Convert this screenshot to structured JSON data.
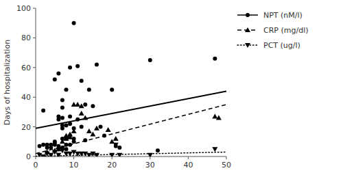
{
  "chart_data": {
    "type": "scatter",
    "ylabel": "Days of hospitalization",
    "xlim": [
      0,
      50
    ],
    "ylim": [
      0,
      100
    ],
    "xticks": [
      0,
      10,
      20,
      30,
      40,
      50
    ],
    "yticks": [
      0,
      20,
      40,
      60,
      80,
      100
    ],
    "grid": false,
    "legend": "right",
    "series": [
      {
        "name": "NPT (nM/l)",
        "type": "scatter",
        "color": "#000000",
        "marker": "circle",
        "line_style": "solid",
        "x": [
          1,
          2,
          2,
          3,
          3,
          4,
          4,
          5,
          5,
          5,
          5,
          6,
          6,
          6,
          6,
          6,
          7,
          7,
          7,
          7,
          7,
          7,
          7,
          8,
          8,
          8,
          8,
          8,
          8,
          9,
          9,
          9,
          9,
          9,
          10,
          10,
          10,
          10,
          11,
          11,
          12,
          12,
          13,
          13,
          14,
          15,
          16,
          17,
          18,
          20,
          21,
          22,
          30,
          32,
          47
        ],
        "values": [
          7,
          8,
          31,
          6,
          8,
          8,
          6,
          8,
          52,
          10,
          9,
          56,
          27,
          25,
          7,
          5,
          38,
          33,
          26,
          21,
          19,
          12,
          6,
          45,
          21,
          13,
          12,
          8,
          5,
          60,
          27,
          22,
          14,
          8,
          90,
          19,
          12,
          10,
          61,
          25,
          51,
          20,
          35,
          11,
          45,
          34,
          62,
          20,
          14,
          45,
          7,
          6,
          65,
          4,
          66
        ]
      },
      {
        "name": "CRP (mg/dl)",
        "type": "scatter",
        "color": "#000000",
        "marker": "triangle-up",
        "line_style": "dashed",
        "x": [
          3,
          5,
          6,
          7,
          8,
          8,
          9,
          9,
          10,
          10,
          11,
          12,
          12,
          13,
          14,
          15,
          16,
          19,
          20,
          21,
          47,
          48
        ],
        "values": [
          3,
          4,
          5,
          10,
          14,
          12,
          13,
          15,
          35,
          17,
          35,
          34,
          29,
          26,
          17,
          15,
          19,
          18,
          10,
          12,
          27,
          26
        ]
      },
      {
        "name": "PCT (ug/l)",
        "type": "scatter",
        "color": "#000000",
        "marker": "triangle-down",
        "line_style": "dotted",
        "x": [
          1,
          2,
          3,
          4,
          5,
          6,
          7,
          8,
          9,
          10,
          11,
          12,
          13,
          14,
          15,
          16,
          20,
          21,
          22,
          30,
          47
        ],
        "values": [
          1,
          0,
          2,
          1,
          3,
          1,
          4,
          2,
          2,
          3,
          2,
          2,
          2,
          1,
          2,
          1,
          1,
          8,
          1,
          1,
          5
        ]
      },
      {
        "type": "line",
        "color": "#000000",
        "line_style": "solid",
        "x": [
          0,
          50
        ],
        "values": [
          19,
          44
        ]
      },
      {
        "type": "line",
        "color": "#000000",
        "line_style": "dashed",
        "x": [
          0,
          50
        ],
        "values": [
          2,
          35
        ]
      },
      {
        "type": "line",
        "color": "#000000",
        "line_style": "dotted",
        "x": [
          0,
          50
        ],
        "values": [
          0.2,
          3.0
        ]
      }
    ]
  }
}
